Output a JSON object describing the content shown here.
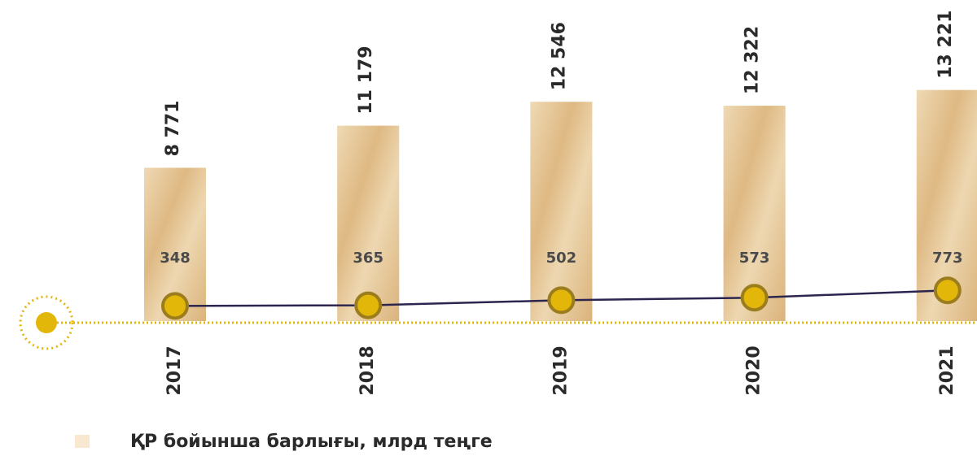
{
  "chart_data": {
    "type": "bar",
    "categories": [
      "2017",
      "2018",
      "2019",
      "2020",
      "2021"
    ],
    "series": [
      {
        "name": "ҚР бойынша барлығы, млрд теңге",
        "color": "#e9cfa2",
        "values": [
          8771,
          11179,
          12546,
          12322,
          13221
        ],
        "value_labels": [
          "8 771",
          "11 179",
          "12 546",
          "12 322",
          "13 221"
        ]
      },
      {
        "type": "line",
        "color": "#2b2550",
        "values": [
          348,
          365,
          502,
          573,
          773
        ]
      }
    ]
  }
}
